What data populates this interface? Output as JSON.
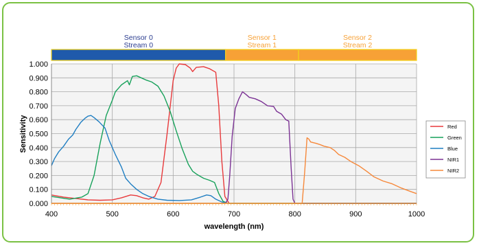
{
  "chart_data": {
    "type": "line",
    "xlabel": "wavelength (nm)",
    "ylabel": "Sensitivity",
    "xlim": [
      400,
      1000
    ],
    "ylim": [
      0,
      1
    ],
    "x_ticks": [
      "400",
      "500",
      "600",
      "700",
      "800",
      "900",
      "1000"
    ],
    "y_ticks": [
      "0.000",
      "0.100",
      "0.200",
      "0.300",
      "0.400",
      "0.500",
      "0.600",
      "0.700",
      "0.800",
      "0.900",
      "1.000"
    ],
    "grid": true,
    "legend_position": "right",
    "sensor_bands": [
      {
        "line1": "Sensor 0",
        "line2": "Stream 0",
        "start": 400,
        "end": 686,
        "fill": "#1f5aab",
        "text_color": "#2b3d8f"
      },
      {
        "line1": "Sensor 1",
        "line2": "Stream 1",
        "start": 686,
        "end": 806,
        "fill": "#f7a136",
        "text_color": "#f7a136"
      },
      {
        "line1": "Sensor 2",
        "line2": "Stream 2",
        "start": 806,
        "end": 1000,
        "fill": "#f7a136",
        "text_color": "#f7a136"
      }
    ],
    "series": [
      {
        "name": "Red",
        "color": "#e8393b",
        "points": [
          [
            400,
            0.06
          ],
          [
            420,
            0.045
          ],
          [
            440,
            0.035
          ],
          [
            460,
            0.025
          ],
          [
            480,
            0.022
          ],
          [
            500,
            0.025
          ],
          [
            515,
            0.04
          ],
          [
            530,
            0.06
          ],
          [
            540,
            0.055
          ],
          [
            550,
            0.04
          ],
          [
            560,
            0.03
          ],
          [
            570,
            0.05
          ],
          [
            580,
            0.15
          ],
          [
            590,
            0.5
          ],
          [
            600,
            0.88
          ],
          [
            605,
            0.97
          ],
          [
            610,
            1.0
          ],
          [
            620,
            0.995
          ],
          [
            628,
            0.97
          ],
          [
            632,
            0.945
          ],
          [
            638,
            0.975
          ],
          [
            650,
            0.98
          ],
          [
            660,
            0.965
          ],
          [
            670,
            0.94
          ],
          [
            675,
            0.7
          ],
          [
            680,
            0.3
          ],
          [
            685,
            0.05
          ],
          [
            692,
            0.0
          ],
          [
            1000,
            0.0
          ]
        ]
      },
      {
        "name": "Green",
        "color": "#17a15a",
        "points": [
          [
            400,
            0.05
          ],
          [
            430,
            0.03
          ],
          [
            450,
            0.045
          ],
          [
            460,
            0.07
          ],
          [
            470,
            0.2
          ],
          [
            480,
            0.43
          ],
          [
            490,
            0.63
          ],
          [
            500,
            0.74
          ],
          [
            505,
            0.8
          ],
          [
            515,
            0.85
          ],
          [
            525,
            0.88
          ],
          [
            528,
            0.85
          ],
          [
            533,
            0.91
          ],
          [
            540,
            0.915
          ],
          [
            550,
            0.895
          ],
          [
            555,
            0.885
          ],
          [
            565,
            0.87
          ],
          [
            575,
            0.84
          ],
          [
            585,
            0.77
          ],
          [
            595,
            0.66
          ],
          [
            605,
            0.52
          ],
          [
            615,
            0.39
          ],
          [
            625,
            0.28
          ],
          [
            632,
            0.23
          ],
          [
            640,
            0.205
          ],
          [
            650,
            0.18
          ],
          [
            660,
            0.165
          ],
          [
            668,
            0.15
          ],
          [
            675,
            0.07
          ],
          [
            682,
            0.015
          ],
          [
            690,
            0.0
          ],
          [
            1000,
            0.0
          ]
        ]
      },
      {
        "name": "Blue",
        "color": "#1f7ec2",
        "points": [
          [
            400,
            0.27
          ],
          [
            405,
            0.32
          ],
          [
            412,
            0.37
          ],
          [
            420,
            0.41
          ],
          [
            428,
            0.46
          ],
          [
            435,
            0.49
          ],
          [
            440,
            0.53
          ],
          [
            448,
            0.58
          ],
          [
            455,
            0.61
          ],
          [
            460,
            0.625
          ],
          [
            465,
            0.63
          ],
          [
            470,
            0.615
          ],
          [
            478,
            0.585
          ],
          [
            488,
            0.54
          ],
          [
            495,
            0.45
          ],
          [
            505,
            0.35
          ],
          [
            515,
            0.26
          ],
          [
            522,
            0.18
          ],
          [
            530,
            0.14
          ],
          [
            540,
            0.1
          ],
          [
            550,
            0.07
          ],
          [
            560,
            0.05
          ],
          [
            575,
            0.03
          ],
          [
            590,
            0.022
          ],
          [
            610,
            0.02
          ],
          [
            630,
            0.025
          ],
          [
            645,
            0.045
          ],
          [
            655,
            0.06
          ],
          [
            662,
            0.055
          ],
          [
            670,
            0.03
          ],
          [
            680,
            0.01
          ],
          [
            690,
            0.0
          ],
          [
            1000,
            0.0
          ]
        ]
      },
      {
        "name": "NIR1",
        "color": "#7b3294",
        "points": [
          [
            400,
            0.0
          ],
          [
            686,
            0.0
          ],
          [
            690,
            0.03
          ],
          [
            693,
            0.2
          ],
          [
            697,
            0.48
          ],
          [
            702,
            0.68
          ],
          [
            708,
            0.75
          ],
          [
            714,
            0.8
          ],
          [
            720,
            0.78
          ],
          [
            725,
            0.76
          ],
          [
            735,
            0.75
          ],
          [
            745,
            0.73
          ],
          [
            755,
            0.7
          ],
          [
            765,
            0.695
          ],
          [
            770,
            0.66
          ],
          [
            778,
            0.64
          ],
          [
            785,
            0.6
          ],
          [
            790,
            0.59
          ],
          [
            794,
            0.25
          ],
          [
            797,
            0.03
          ],
          [
            800,
            0.0
          ],
          [
            1000,
            0.0
          ]
        ]
      },
      {
        "name": "NIR2",
        "color": "#f6883a",
        "points": [
          [
            400,
            0.0
          ],
          [
            812,
            0.0
          ],
          [
            816,
            0.22
          ],
          [
            820,
            0.47
          ],
          [
            823,
            0.46
          ],
          [
            826,
            0.44
          ],
          [
            835,
            0.43
          ],
          [
            842,
            0.42
          ],
          [
            848,
            0.41
          ],
          [
            858,
            0.4
          ],
          [
            865,
            0.38
          ],
          [
            872,
            0.35
          ],
          [
            882,
            0.33
          ],
          [
            892,
            0.3
          ],
          [
            905,
            0.27
          ],
          [
            918,
            0.23
          ],
          [
            930,
            0.19
          ],
          [
            945,
            0.16
          ],
          [
            960,
            0.14
          ],
          [
            975,
            0.11
          ],
          [
            990,
            0.085
          ],
          [
            1000,
            0.07
          ]
        ]
      }
    ]
  }
}
